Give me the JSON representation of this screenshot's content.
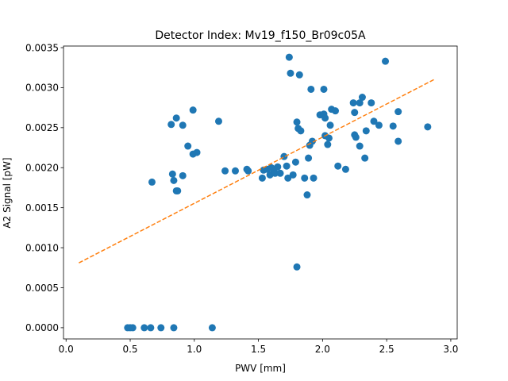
{
  "chart_data": {
    "type": "scatter",
    "title": "Detector Index: Mv19_f150_Br09c05A",
    "xlabel": "PWV [mm]",
    "ylabel": "A2 Signal [pW]",
    "xlim": [
      -0.02,
      3.05
    ],
    "ylim": [
      -0.00014,
      0.00352
    ],
    "xticks": [
      0.0,
      0.5,
      1.0,
      1.5,
      2.0,
      2.5,
      3.0
    ],
    "xtick_labels": [
      "0.0",
      "0.5",
      "1.0",
      "1.5",
      "2.0",
      "2.5",
      "3.0"
    ],
    "yticks": [
      0.0,
      0.0005,
      0.001,
      0.0015,
      0.002,
      0.0025,
      0.003,
      0.0035
    ],
    "ytick_labels": [
      "0.0000",
      "0.0005",
      "0.0010",
      "0.0015",
      "0.0020",
      "0.0025",
      "0.0030",
      "0.0035"
    ],
    "grid": false,
    "series": [
      {
        "name": "data",
        "kind": "scatter",
        "color": "#1f77b4",
        "points": [
          [
            0.48,
            0.0
          ],
          [
            0.5,
            0.0
          ],
          [
            0.52,
            0.0
          ],
          [
            0.61,
            0.0
          ],
          [
            0.66,
            0.0
          ],
          [
            0.74,
            0.0
          ],
          [
            0.84,
            0.0
          ],
          [
            1.14,
            0.0
          ],
          [
            0.67,
            0.00182
          ],
          [
            0.83,
            0.00192
          ],
          [
            0.84,
            0.00184
          ],
          [
            0.86,
            0.00171
          ],
          [
            0.87,
            0.00171
          ],
          [
            0.91,
            0.0019
          ],
          [
            0.82,
            0.00254
          ],
          [
            0.86,
            0.00262
          ],
          [
            0.91,
            0.00253
          ],
          [
            0.95,
            0.00227
          ],
          [
            0.99,
            0.00217
          ],
          [
            1.02,
            0.00219
          ],
          [
            0.99,
            0.00272
          ],
          [
            1.19,
            0.00258
          ],
          [
            1.24,
            0.00196
          ],
          [
            1.32,
            0.00196
          ],
          [
            1.41,
            0.00198
          ],
          [
            1.42,
            0.00196
          ],
          [
            1.53,
            0.00187
          ],
          [
            1.54,
            0.00197
          ],
          [
            1.57,
            0.00198
          ],
          [
            1.59,
            0.00191
          ],
          [
            1.6,
            0.002
          ],
          [
            1.62,
            0.00197
          ],
          [
            1.63,
            0.00193
          ],
          [
            1.65,
            0.00201
          ],
          [
            1.67,
            0.00193
          ],
          [
            1.7,
            0.00214
          ],
          [
            1.72,
            0.00202
          ],
          [
            1.73,
            0.00187
          ],
          [
            1.77,
            0.00191
          ],
          [
            1.79,
            0.00207
          ],
          [
            1.8,
            0.00076
          ],
          [
            1.8,
            0.00257
          ],
          [
            1.81,
            0.00249
          ],
          [
            1.83,
            0.00246
          ],
          [
            1.86,
            0.00187
          ],
          [
            1.88,
            0.00166
          ],
          [
            1.89,
            0.00212
          ],
          [
            1.9,
            0.00228
          ],
          [
            1.92,
            0.00233
          ],
          [
            1.93,
            0.00187
          ],
          [
            1.74,
            0.00338
          ],
          [
            1.75,
            0.00318
          ],
          [
            1.82,
            0.00316
          ],
          [
            1.91,
            0.00298
          ],
          [
            2.01,
            0.00298
          ],
          [
            1.98,
            0.00266
          ],
          [
            2.01,
            0.00267
          ],
          [
            2.02,
            0.00262
          ],
          [
            2.02,
            0.0024
          ],
          [
            2.04,
            0.00229
          ],
          [
            2.05,
            0.00237
          ],
          [
            2.06,
            0.00253
          ],
          [
            2.07,
            0.00273
          ],
          [
            2.1,
            0.00271
          ],
          [
            2.12,
            0.00202
          ],
          [
            2.18,
            0.00198
          ],
          [
            2.24,
            0.00281
          ],
          [
            2.25,
            0.00269
          ],
          [
            2.25,
            0.00241
          ],
          [
            2.26,
            0.00238
          ],
          [
            2.29,
            0.00281
          ],
          [
            2.29,
            0.00227
          ],
          [
            2.31,
            0.00288
          ],
          [
            2.33,
            0.00212
          ],
          [
            2.34,
            0.00246
          ],
          [
            2.38,
            0.00281
          ],
          [
            2.4,
            0.00258
          ],
          [
            2.44,
            0.00253
          ],
          [
            2.49,
            0.00333
          ],
          [
            2.55,
            0.00252
          ],
          [
            2.59,
            0.0027
          ],
          [
            2.59,
            0.00233
          ],
          [
            2.82,
            0.00251
          ]
        ]
      },
      {
        "name": "fit",
        "kind": "line",
        "style": "dashed",
        "color": "#ff7f0e",
        "x": [
          0.1,
          2.88
        ],
        "y": [
          0.00081,
          0.00311
        ]
      }
    ]
  }
}
